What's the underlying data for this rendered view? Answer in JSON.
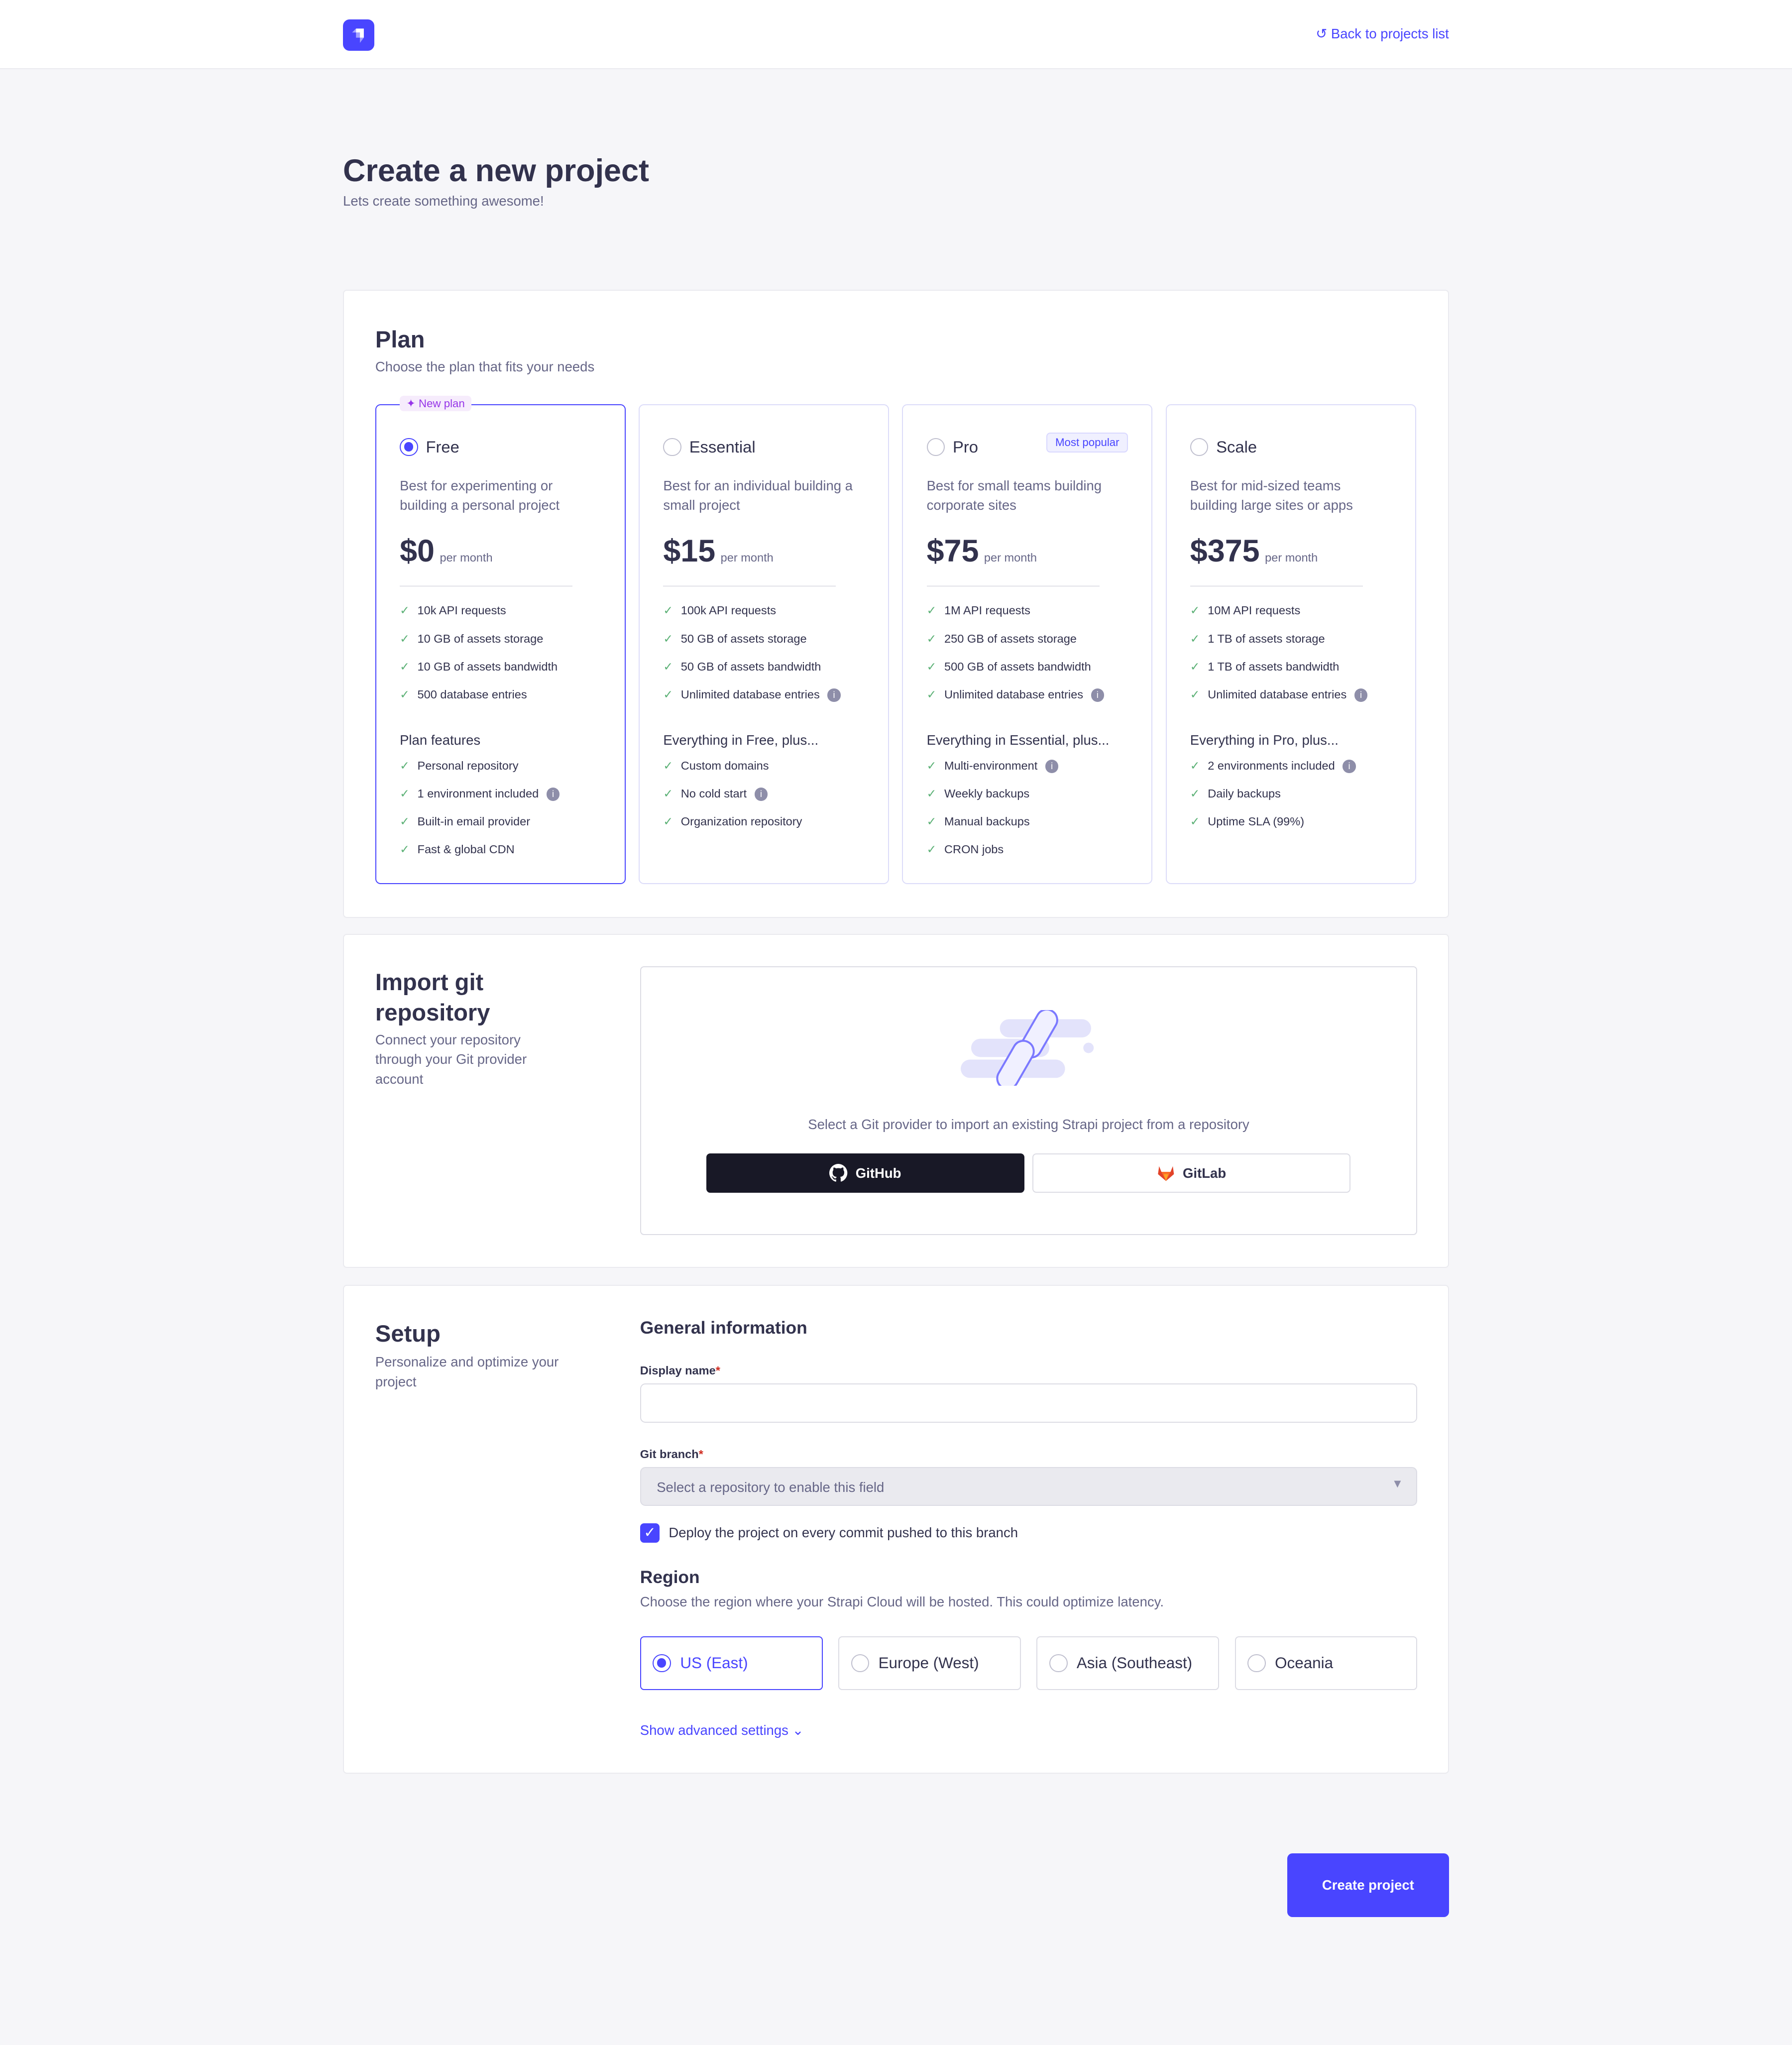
{
  "header": {
    "back_label": "Back to projects list"
  },
  "page": {
    "title": "Create a new project",
    "subtitle": "Lets create something awesome!"
  },
  "plan_section": {
    "title": "Plan",
    "subtitle": "Choose the plan that fits your needs",
    "new_badge": "New plan",
    "popular_badge": "Most popular",
    "plans": [
      {
        "name": "Free",
        "selected": true,
        "desc": "Best for experimenting or building a personal project",
        "price": "$0",
        "period": "per month",
        "limits": [
          "10k API requests",
          "10 GB of assets storage",
          "10 GB of assets bandwidth",
          "500 database entries"
        ],
        "features_title": "Plan features",
        "features": [
          "Personal repository",
          "1 environment included",
          "Built-in email provider",
          "Fast & global CDN"
        ]
      },
      {
        "name": "Essential",
        "selected": false,
        "desc": "Best for an individual building a small project",
        "price": "$15",
        "period": "per month",
        "limits": [
          "100k API requests",
          "50 GB of assets storage",
          "50 GB of assets bandwidth",
          "Unlimited database entries"
        ],
        "features_title": "Everything in Free, plus...",
        "features": [
          "Custom domains",
          "No cold start",
          "Organization repository"
        ]
      },
      {
        "name": "Pro",
        "selected": false,
        "desc": "Best for small teams building corporate sites",
        "price": "$75",
        "period": "per month",
        "limits": [
          "1M API requests",
          "250 GB of assets storage",
          "500 GB of assets bandwidth",
          "Unlimited database entries"
        ],
        "features_title": "Everything in Essential, plus...",
        "features": [
          "Multi-environment",
          "Weekly backups",
          "Manual backups",
          "CRON jobs"
        ]
      },
      {
        "name": "Scale",
        "selected": false,
        "desc": "Best for mid-sized teams building large sites or apps",
        "price": "$375",
        "period": "per month",
        "limits": [
          "10M API requests",
          "1 TB of assets storage",
          "1 TB of assets bandwidth",
          "Unlimited database entries"
        ],
        "features_title": "Everything in Pro, plus...",
        "features": [
          "2 environments included",
          "Daily backups",
          "Uptime SLA (99%)"
        ]
      }
    ]
  },
  "import_section": {
    "title": "Import git repository",
    "subtitle": "Connect your repository through your Git provider account",
    "prompt": "Select a Git provider to import an existing Strapi project from a repository",
    "github": "GitHub",
    "gitlab": "GitLab"
  },
  "setup_section": {
    "title": "Setup",
    "subtitle": "Personalize and optimize your project",
    "general_title": "General information",
    "display_name_label": "Display name",
    "display_name_value": "",
    "git_branch_label": "Git branch",
    "git_branch_placeholder": "Select a repository to enable this field",
    "deploy_checkbox": "Deploy the project on every commit pushed to this branch",
    "deploy_checked": true,
    "region_title": "Region",
    "region_subtitle": "Choose the region where your Strapi Cloud will be hosted. This could optimize latency.",
    "regions": [
      {
        "label": "US (East)",
        "selected": true
      },
      {
        "label": "Europe (West)",
        "selected": false
      },
      {
        "label": "Asia (Southeast)",
        "selected": false
      },
      {
        "label": "Oceania",
        "selected": false
      }
    ],
    "advanced": "Show advanced settings"
  },
  "create_button": "Create project",
  "colors": {
    "primary": "#4945ff",
    "check": "#5cb176",
    "github_bg": "#181826"
  }
}
